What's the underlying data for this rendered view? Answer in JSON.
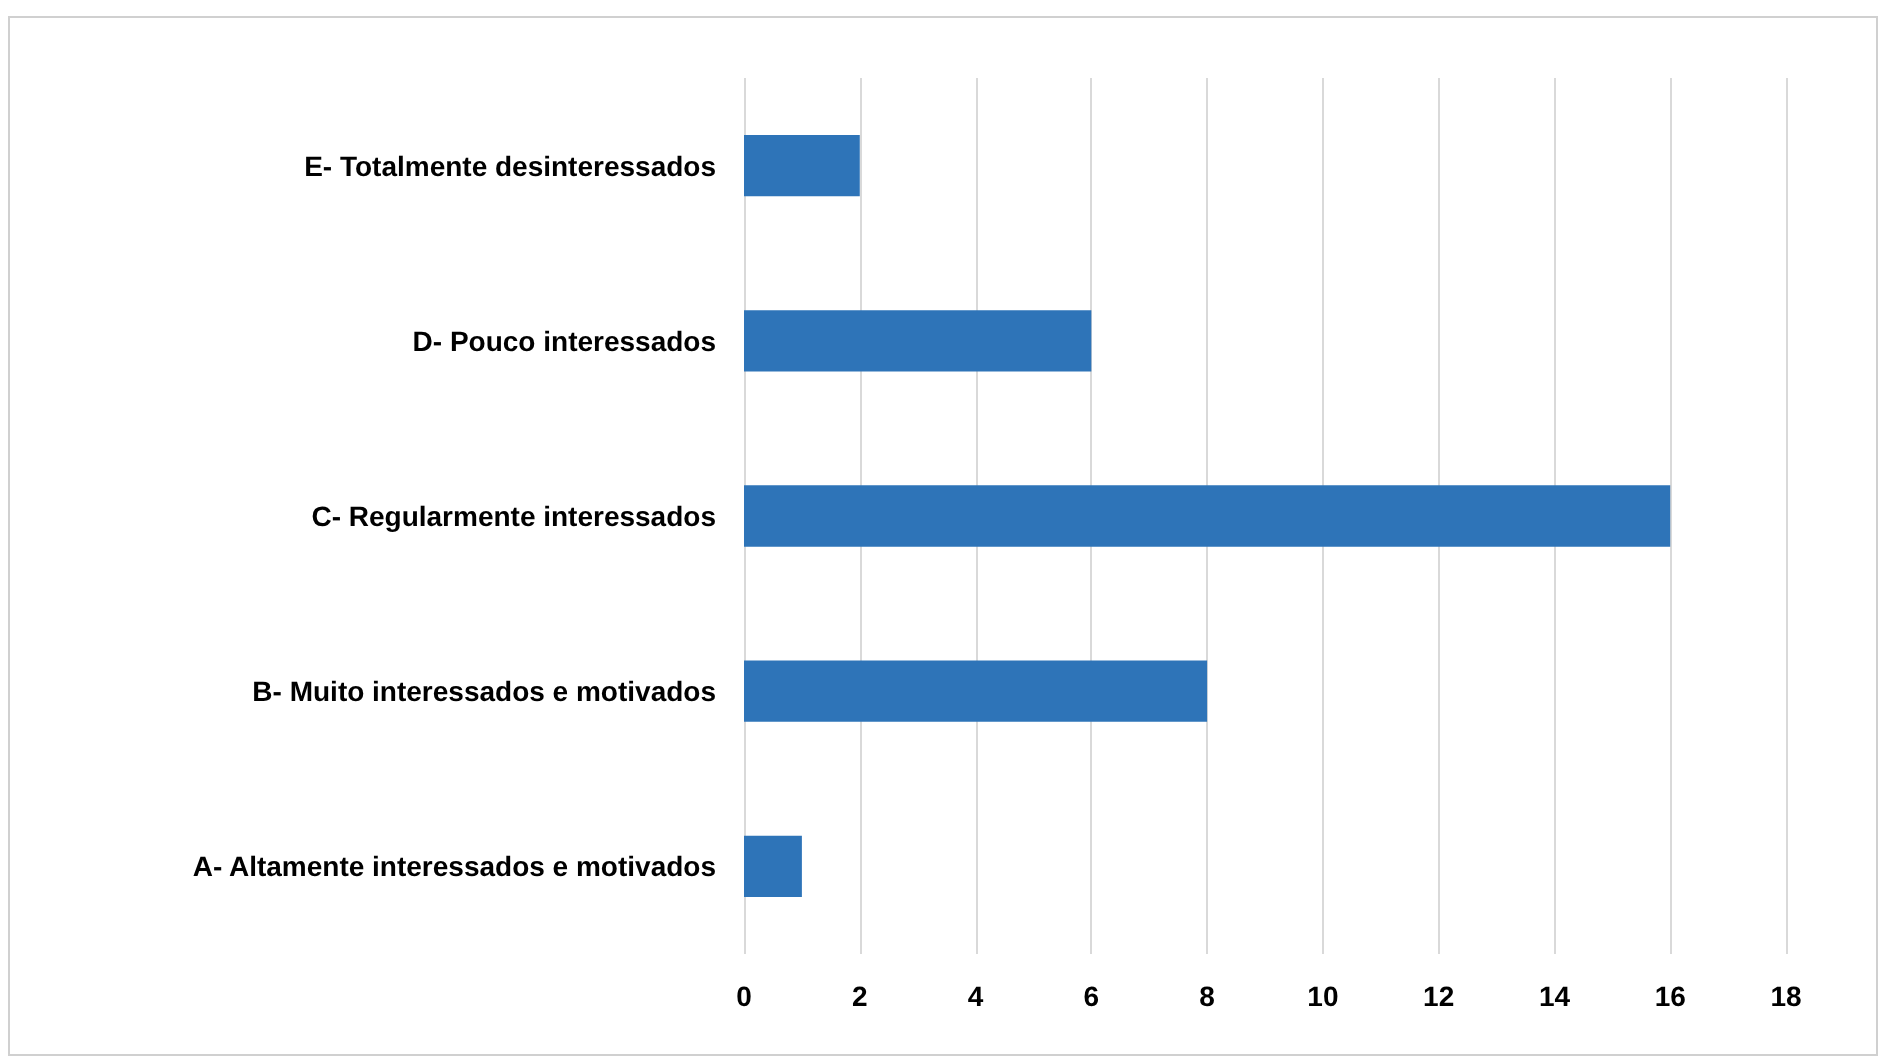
{
  "chart_data": {
    "type": "bar",
    "orientation": "horizontal",
    "categories": [
      "E- Totalmente desinteressados",
      "D- Pouco interessados",
      "C- Regularmente interessados",
      "B- Muito interessados e motivados",
      "A- Altamente interessados e motivados"
    ],
    "values": [
      2,
      6,
      16,
      8,
      1
    ],
    "color": "#2e74b8",
    "xlim": [
      0,
      18
    ],
    "xticks": [
      0,
      2,
      4,
      6,
      8,
      10,
      12,
      14,
      16,
      18
    ],
    "grid": "x"
  }
}
